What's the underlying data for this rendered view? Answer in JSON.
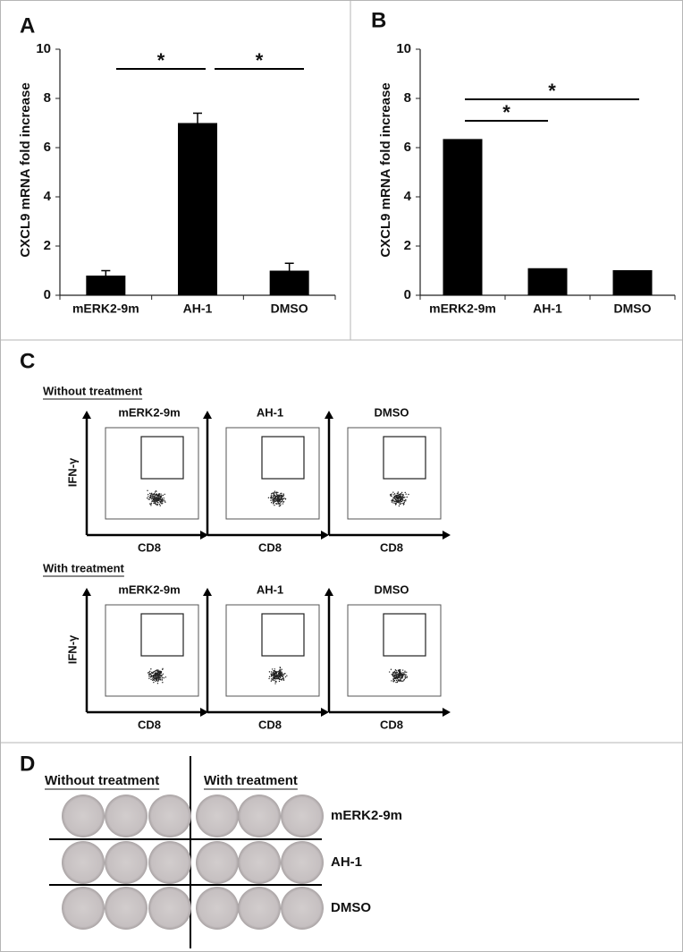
{
  "chart_data": [
    {
      "type": "bar",
      "label": "A",
      "ylabel": "CXCL9 mRNA fold increase",
      "categories": [
        "mERK2-9m",
        "AH-1",
        "DMSO"
      ],
      "values": [
        0.8,
        7.0,
        1.0
      ],
      "errors": [
        0.2,
        0.4,
        0.3
      ],
      "color": "#000000",
      "ylim": [
        0,
        10
      ],
      "yticks": [
        0,
        2,
        4,
        6,
        8,
        10
      ],
      "annotations": [
        "*",
        "*"
      ]
    },
    {
      "type": "bar",
      "label": "B",
      "ylabel": "CXCL9 mRNA fold increase",
      "categories": [
        "mERK2-9m",
        "AH-1",
        "DMSO"
      ],
      "values": [
        6.35,
        1.1,
        1.02
      ],
      "color": "#000000",
      "ylim": [
        0,
        10
      ],
      "yticks": [
        0,
        2,
        4,
        6,
        8,
        10
      ],
      "annotations": [
        "*",
        "*"
      ]
    }
  ],
  "panel_c": {
    "label": "C",
    "x_axis": "CD8",
    "y_axis": "IFN-γ",
    "rows": [
      {
        "title": "Without treatment",
        "plots": [
          "mERK2-9m",
          "AH-1",
          "DMSO"
        ]
      },
      {
        "title": "With treatment",
        "plots": [
          "mERK2-9m",
          "AH-1",
          "DMSO"
        ]
      }
    ]
  },
  "panel_d": {
    "label": "D",
    "columns": [
      "Without treatment",
      "With treatment"
    ],
    "rows": [
      "mERK2-9m",
      "AH-1",
      "DMSO"
    ]
  }
}
